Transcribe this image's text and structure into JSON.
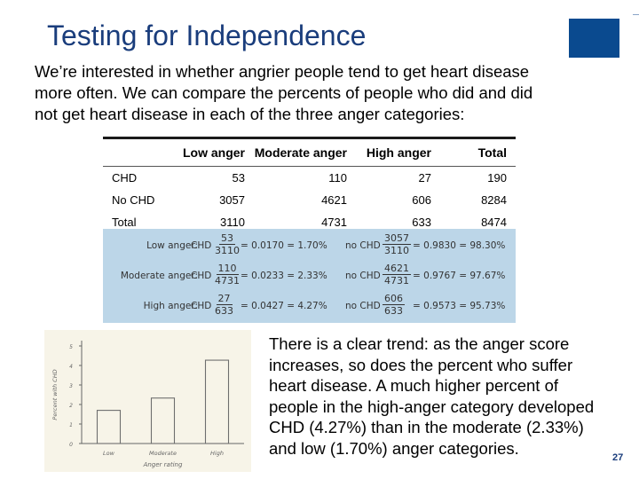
{
  "slide": {
    "title": "Testing for Independence",
    "intro_lines": [
      "We’re interested in whether angrier people tend to get heart disease",
      "more often. We can compare the percents of people who did and did",
      "not get heart disease in each of the three anger categories:"
    ],
    "summary_lines": [
      "There is a clear trend: as the anger score",
      "increases, so does the percent who suffer",
      "heart disease. A much higher percent of",
      "people in the high-anger category developed",
      "CHD (4.27%) than in the moderate (2.33%)",
      "and low (1.70%) anger categories."
    ],
    "page_number": "27",
    "accent_color": "#1a3d7c",
    "panel_color": "#bcd6e8"
  },
  "table": {
    "headers": [
      "",
      "Low anger",
      "Moderate anger",
      "High anger",
      "Total"
    ],
    "rows": [
      [
        "CHD",
        "53",
        "110",
        "27",
        "190"
      ],
      [
        "No CHD",
        "3057",
        "4621",
        "606",
        "8284"
      ],
      [
        "Total",
        "3110",
        "4731",
        "633",
        "8474"
      ]
    ]
  },
  "calc": [
    {
      "label": "Low anger:",
      "chd": "CHD",
      "chd_num": "53",
      "chd_den": "3110",
      "chd_eq": "= 0.0170 = 1.70%",
      "nochd": "no CHD",
      "nochd_num": "3057",
      "nochd_den": "3110",
      "nochd_eq": "= 0.9830 = 98.30%"
    },
    {
      "label": "Moderate anger:",
      "chd": "CHD",
      "chd_num": "110",
      "chd_den": "4731",
      "chd_eq": "= 0.0233 = 2.33%",
      "nochd": "no CHD",
      "nochd_num": "4621",
      "nochd_den": "4731",
      "nochd_eq": "= 0.9767 = 97.67%"
    },
    {
      "label": "High anger:",
      "chd": "CHD",
      "chd_num": "27",
      "chd_den": "633",
      "chd_eq": "= 0.0427 = 4.27%",
      "nochd": "no CHD",
      "nochd_num": "606",
      "nochd_den": "633",
      "nochd_eq": "= 0.9573 = 95.73%"
    }
  ],
  "chart_data": {
    "type": "bar",
    "categories": [
      "Low",
      "Moderate",
      "High"
    ],
    "values": [
      1.7,
      2.33,
      4.27
    ],
    "ylabel": "Percent with CHD",
    "xlabel": "Anger rating",
    "ylim": [
      0,
      5
    ],
    "yticks": [
      "0",
      "1",
      "2",
      "3",
      "4",
      "5"
    ]
  }
}
